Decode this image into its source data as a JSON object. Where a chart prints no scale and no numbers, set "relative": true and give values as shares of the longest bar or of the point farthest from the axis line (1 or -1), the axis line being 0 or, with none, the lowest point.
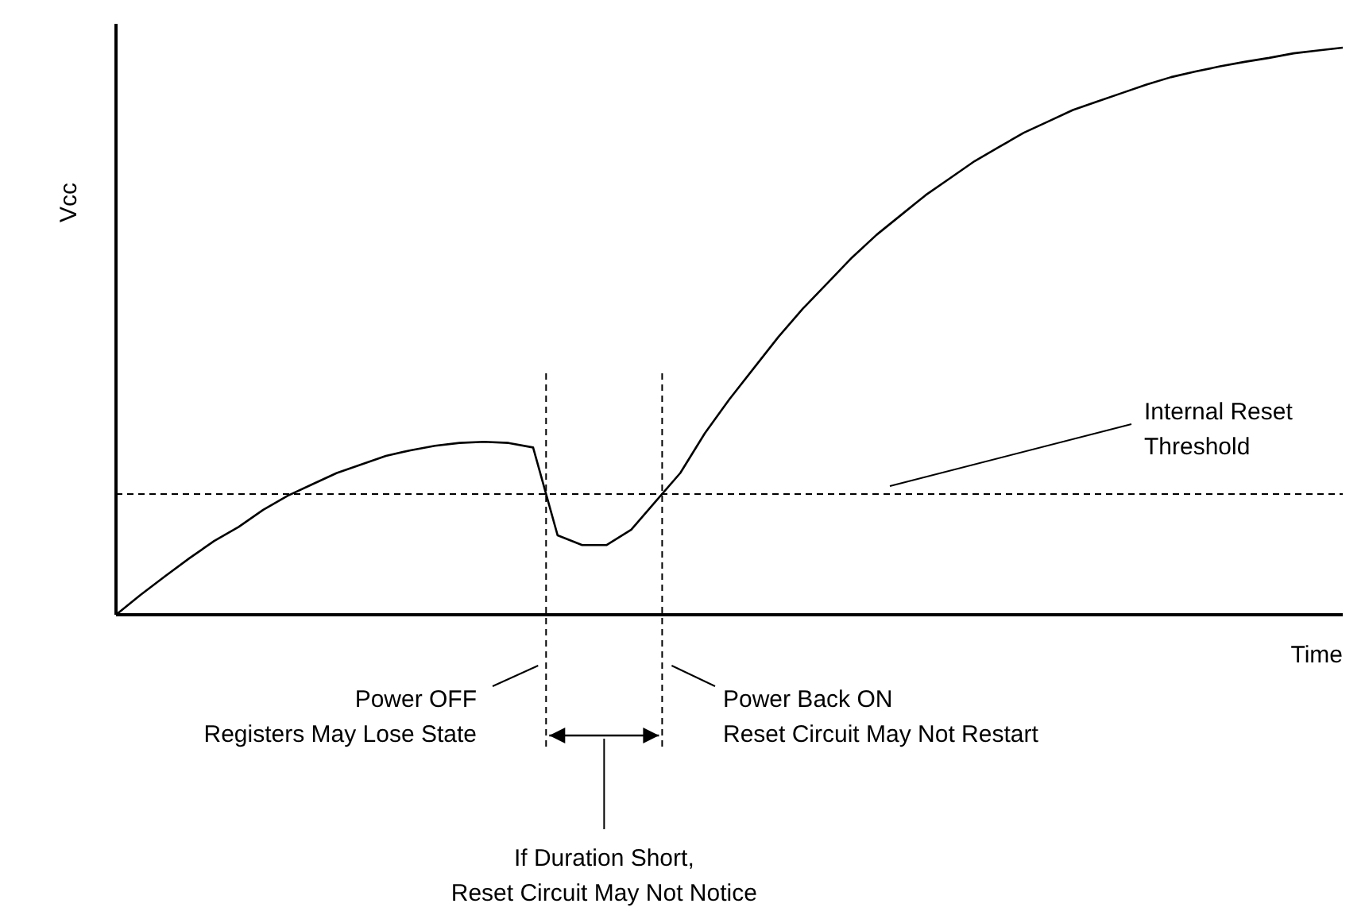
{
  "chart_data": {
    "type": "line",
    "relative": true,
    "xlabel": "Time",
    "ylabel": "Vcc",
    "line_style": "solid",
    "categories": [
      null,
      null,
      null,
      null,
      null,
      null,
      null,
      null,
      null,
      null,
      null,
      null,
      null,
      null,
      null,
      null,
      null,
      null,
      null,
      null,
      null,
      null,
      null,
      null,
      null,
      null,
      null,
      null,
      null,
      null,
      null,
      null,
      null,
      null,
      null,
      null,
      null,
      null,
      null,
      null,
      null,
      null,
      null,
      null,
      null,
      null,
      null,
      null,
      null,
      null,
      null
    ],
    "series": [
      {
        "color": "#000000",
        "values": [
          0,
          0.035,
          0.068,
          0.1,
          0.13,
          0.155,
          0.185,
          0.21,
          0.23,
          0.25,
          0.265,
          0.28,
          0.29,
          0.298,
          0.303,
          0.305,
          0.303,
          0.295,
          0.14,
          0.123,
          0.123,
          0.15,
          0.2,
          0.25,
          0.32,
          0.38,
          0.435,
          0.49,
          0.54,
          0.585,
          0.63,
          0.67,
          0.705,
          0.74,
          0.77,
          0.8,
          0.825,
          0.85,
          0.87,
          0.89,
          0.905,
          0.92,
          0.935,
          0.948,
          0.958,
          0.967,
          0.975,
          0.982,
          0.99,
          0.995,
          1
        ]
      }
    ],
    "ref_lines": [
      {
        "axis": "y",
        "value": 0.213,
        "label": "Internal Reset\nThreshold",
        "line_style": "dashed",
        "color": "#000000"
      }
    ],
    "annotations": [
      "Power OFF\nRegisters May Lose State",
      "Power Back ON\nReset Circuit May Not Restart",
      "If Duration Short,\nReset Circuit May Not Notice"
    ]
  }
}
